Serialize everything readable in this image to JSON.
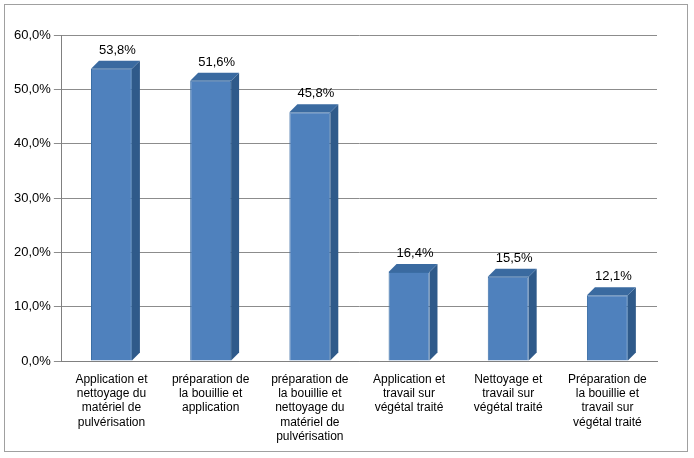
{
  "chart_data": {
    "type": "bar",
    "categories": [
      "Application et nettoyage du matériel de pulvérisation",
      "préparation de la bouillie et application",
      "préparation de la bouillie et nettoyage du matériel de pulvérisation",
      "Application et travail sur végétal traité",
      "Nettoyage et travail sur végétal traité",
      "Préparation de la bouillie et travail sur végétal traité"
    ],
    "values": [
      53.8,
      51.6,
      45.8,
      16.4,
      15.5,
      12.1
    ],
    "value_labels": [
      "53,8%",
      "51,6%",
      "45,8%",
      "16,4%",
      "15,5%",
      "12,1%"
    ],
    "color": "#4f81bd",
    "ylim": [
      0,
      60
    ],
    "yticks": [
      {
        "value": 0,
        "label": "0,0%"
      },
      {
        "value": 10,
        "label": "10,0%"
      },
      {
        "value": 20,
        "label": "20,0%"
      },
      {
        "value": 30,
        "label": "30,0%"
      },
      {
        "value": 40,
        "label": "40,0%"
      },
      {
        "value": 50,
        "label": "50,0%"
      },
      {
        "value": 60,
        "label": "60,0%"
      }
    ],
    "grid": true,
    "data_labels": true
  }
}
